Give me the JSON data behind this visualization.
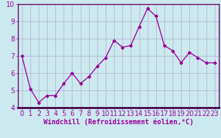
{
  "x": [
    0,
    1,
    2,
    3,
    4,
    5,
    6,
    7,
    8,
    9,
    10,
    11,
    12,
    13,
    14,
    15,
    16,
    17,
    18,
    19,
    20,
    21,
    22,
    23
  ],
  "y": [
    7.0,
    5.1,
    4.3,
    4.7,
    4.7,
    5.4,
    6.0,
    5.4,
    5.8,
    6.4,
    6.9,
    7.9,
    7.5,
    7.6,
    8.7,
    9.75,
    9.3,
    7.6,
    7.3,
    6.6,
    7.2,
    6.9,
    6.6,
    6.6
  ],
  "line_color": "#990099",
  "marker": "D",
  "marker_size": 2.5,
  "linewidth": 1.0,
  "xlabel": "Windchill (Refroidissement éolien,°C)",
  "ylabel": "",
  "ylim": [
    4,
    10
  ],
  "xlim": [
    -0.5,
    23.5
  ],
  "yticks": [
    4,
    5,
    6,
    7,
    8,
    9,
    10
  ],
  "xticks": [
    0,
    1,
    2,
    3,
    4,
    5,
    6,
    7,
    8,
    9,
    10,
    11,
    12,
    13,
    14,
    15,
    16,
    17,
    18,
    19,
    20,
    21,
    22,
    23
  ],
  "background_color": "#cce9f0",
  "figure_color": "#cce9f0",
  "grid_color": "#aaaacc",
  "tick_label_color": "#990099",
  "spine_color": "#660066",
  "xlabel_color": "#990099",
  "xlabel_fontsize": 7,
  "tick_fontsize": 7
}
